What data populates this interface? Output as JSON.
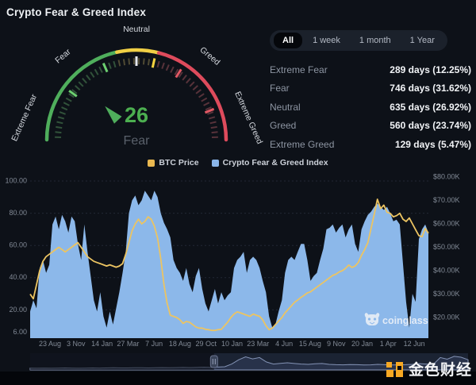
{
  "page": {
    "title": "Crypto Fear & Greed Index"
  },
  "gauge": {
    "value": 26,
    "value_label": "Fear",
    "value_color": "#4caf50",
    "label_color": "#5a616b",
    "dial_labels": [
      "Extreme Fear",
      "Fear",
      "Neutral",
      "Greed",
      "Extreme Greed"
    ],
    "arc_segments": [
      {
        "from": 0,
        "to": 43,
        "color": "#4fae5c"
      },
      {
        "from": 43,
        "to": 58,
        "color": "#f0cf45"
      },
      {
        "from": 58,
        "to": 100,
        "color": "#de4b5c"
      }
    ],
    "accent_ticks": [
      {
        "v": 20,
        "color": "#6ccf70"
      },
      {
        "v": 37,
        "color": "#6ccf70"
      },
      {
        "v": 50,
        "color": "#e6e9ee"
      },
      {
        "v": 57,
        "color": "#f5d33f"
      },
      {
        "v": 68,
        "color": "#e25864"
      },
      {
        "v": 88,
        "color": "#e25864"
      }
    ]
  },
  "range_tabs": {
    "items": [
      {
        "label": "All",
        "active": true
      },
      {
        "label": "1 week",
        "active": false
      },
      {
        "label": "1 month",
        "active": false
      },
      {
        "label": "1 Year",
        "active": false
      }
    ]
  },
  "stats": {
    "rows": [
      {
        "label": "Extreme Fear",
        "value": "289 days (12.25%)"
      },
      {
        "label": "Fear",
        "value": "746 days (31.62%)"
      },
      {
        "label": "Neutral",
        "value": "635 days (26.92%)"
      },
      {
        "label": "Greed",
        "value": "560 days (23.74%)"
      },
      {
        "label": "Extreme Greed",
        "value": "129 days (5.47%)"
      }
    ]
  },
  "legend": {
    "items": [
      {
        "label": "BTC Price",
        "color": "#e9b850"
      },
      {
        "label": "Crypto Fear & Greed Index",
        "color": "#8ab6ea"
      }
    ]
  },
  "watermarks": {
    "chart": "coinglass",
    "site": "金色财经"
  },
  "chart_data": {
    "type": "area",
    "title": "Crypto Fear & Greed Index vs BTC Price",
    "x_labels": [
      "23 Aug",
      "3 Nov",
      "14 Jan",
      "27 Mar",
      "7 Jun",
      "18 Aug",
      "29 Oct",
      "10 Jan",
      "23 Mar",
      "4 Jun",
      "15 Aug",
      "9 Nov",
      "20 Jan",
      "1 Apr",
      "12 Jun"
    ],
    "left_axis": {
      "tick_values": [
        100,
        80,
        60,
        40,
        20,
        6
      ],
      "tick_labels": [
        "100.00",
        "80.00",
        "60.00",
        "40.00",
        "20.00",
        "6.00"
      ]
    },
    "right_axis": {
      "tick_values_k": [
        80,
        70,
        60,
        50,
        40,
        30,
        20
      ],
      "tick_labels": [
        "$80.00K",
        "$70.00K",
        "$60.00K",
        "$50.00K",
        "$40.00K",
        "$30.00K",
        "$20.00K"
      ]
    },
    "series": [
      {
        "name": "Crypto Fear & Greed Index",
        "type": "area",
        "color": "#8cb8ea",
        "values": [
          19,
          26,
          21,
          46,
          51,
          43,
          48,
          73,
          78,
          70,
          79,
          75,
          68,
          78,
          75,
          61,
          51,
          73,
          56,
          41,
          26,
          19,
          31,
          16,
          9,
          19,
          11,
          21,
          31,
          43,
          56,
          80,
          88,
          91,
          85,
          88,
          94,
          91,
          88,
          94,
          90,
          80,
          74,
          70,
          65,
          51,
          46,
          43,
          38,
          46,
          36,
          31,
          41,
          46,
          33,
          24,
          19,
          26,
          33,
          24,
          31,
          26,
          29,
          31,
          46,
          51,
          53,
          56,
          43,
          51,
          53,
          51,
          46,
          38,
          31,
          16,
          9,
          11,
          19,
          26,
          43,
          51,
          53,
          51,
          56,
          61,
          61,
          51,
          38,
          41,
          43,
          51,
          58,
          70,
          71,
          73,
          68,
          71,
          73,
          65,
          70,
          73,
          61,
          56,
          70,
          75,
          79,
          81,
          84,
          86,
          84,
          82,
          84,
          80,
          75,
          76,
          73,
          49,
          25,
          9,
          30,
          25,
          64,
          70,
          73,
          68
        ]
      },
      {
        "name": "BTC Price",
        "type": "line",
        "color": "#ecc462",
        "unit": "USD thousands",
        "values": [
          30,
          28,
          34,
          40,
          44,
          46,
          47,
          48,
          49,
          50,
          49,
          48,
          49,
          50,
          51,
          52,
          50,
          48,
          46,
          45,
          44,
          43.5,
          43,
          42.5,
          42,
          42.5,
          42,
          41.5,
          42,
          43,
          47,
          52,
          57,
          60,
          62,
          60,
          61,
          63,
          62,
          59,
          54,
          45,
          34,
          26,
          21,
          20.5,
          20,
          19,
          17.5,
          18.3,
          18,
          17,
          16,
          15.5,
          15.5,
          15,
          14.8,
          14.5,
          14.5,
          14.8,
          15,
          16.5,
          18,
          20,
          21.5,
          22.4,
          22,
          21.5,
          21,
          20.5,
          21.5,
          21,
          20.5,
          19,
          16.5,
          14.8,
          15.5,
          17,
          18.5,
          20,
          22,
          23.5,
          25,
          26.5,
          27.5,
          28.6,
          29.5,
          30.5,
          31,
          32,
          33,
          34,
          35,
          36,
          37,
          38,
          38.5,
          39.5,
          40,
          41,
          42.4,
          41.4,
          42,
          43.5,
          46.6,
          49,
          52,
          58,
          64,
          70.5,
          66.5,
          68,
          65,
          64.5,
          63,
          63.5,
          64.5,
          62,
          61,
          62.5,
          60,
          57.5,
          55,
          54.5,
          58,
          56
        ]
      }
    ],
    "navigator": {
      "selected_from_fraction": 0.42,
      "values": [
        6,
        5,
        6,
        5,
        6,
        7,
        6,
        5,
        6,
        7,
        6,
        7,
        8,
        7,
        7,
        8,
        8,
        7,
        8,
        9,
        8,
        9,
        10,
        9,
        10,
        11,
        10,
        12,
        14,
        30,
        55,
        72,
        60,
        68,
        42,
        30,
        34,
        37,
        33,
        30,
        28,
        31,
        33,
        28,
        26,
        25,
        27,
        26,
        24,
        25,
        28,
        26,
        24,
        25,
        26,
        28,
        32,
        30,
        28,
        68,
        58,
        75,
        70,
        55
      ]
    }
  }
}
